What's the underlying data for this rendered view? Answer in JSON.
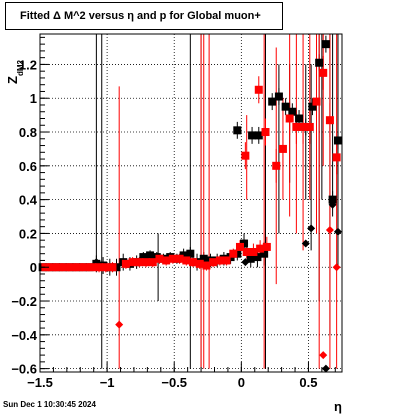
{
  "window": {
    "title": "Fitted Δ M^2 versus η and p for Global muon+",
    "timestamp": "Sun Dec  1 10:30:45 2024"
  },
  "chart_data": {
    "type": "scatter",
    "title": "Fitted Δ M^2 versus η and p for Global muon+",
    "xlabel": "η",
    "ylabel": "Z_{dM2}",
    "xlim": [
      -1.5,
      0.75
    ],
    "ylim": [
      -0.62,
      1.38
    ],
    "grid": true,
    "xticks": [
      -1.5,
      -1,
      -0.5,
      0,
      0.5
    ],
    "xtick_labels": [
      "−1.5",
      "−1",
      "−0.5",
      "0",
      "0.5"
    ],
    "yticks": [
      -0.6,
      -0.4,
      -0.2,
      0,
      0.2,
      0.4,
      0.6,
      0.8,
      1,
      1.2
    ],
    "ytick_labels": [
      "−0.6",
      "−0.4",
      "−0.2",
      "0",
      "0.2",
      "0.4",
      "0.6",
      "0.8",
      "1",
      "1.2"
    ],
    "series": [
      {
        "color": "#000000",
        "marker": "square",
        "points": [
          [
            -1.48,
            0.0,
            0.02
          ],
          [
            -1.43,
            0.0,
            0.02
          ],
          [
            -1.38,
            0.0,
            0.02
          ],
          [
            -1.33,
            0.0,
            0.02
          ],
          [
            -1.28,
            0.0,
            0.02
          ],
          [
            -1.23,
            0.0,
            0.02
          ],
          [
            -1.18,
            0.0,
            0.02
          ],
          [
            -1.13,
            0.0,
            0.02
          ],
          [
            -1.08,
            0.02,
            0.05
          ],
          [
            -1.03,
            0.01,
            0.05
          ],
          [
            -0.98,
            0.0,
            0.05
          ],
          [
            -0.93,
            0.0,
            0.05
          ],
          [
            -0.88,
            0.03,
            0.05
          ],
          [
            -0.83,
            0.02,
            0.04
          ],
          [
            -0.78,
            0.03,
            0.04
          ],
          [
            -0.73,
            0.06,
            0.03
          ],
          [
            -0.68,
            0.07,
            0.03
          ],
          [
            -0.63,
            0.06,
            0.03
          ],
          [
            -0.58,
            0.05,
            0.03
          ],
          [
            -0.53,
            0.06,
            0.03
          ],
          [
            -0.48,
            0.05,
            0.03
          ],
          [
            -0.43,
            0.07,
            0.04
          ],
          [
            -0.38,
            0.08,
            0.04
          ],
          [
            -0.33,
            0.03,
            0.05
          ],
          [
            -0.28,
            0.05,
            0.04
          ],
          [
            -0.23,
            0.04,
            0.04
          ],
          [
            -0.18,
            0.04,
            0.04
          ],
          [
            -0.13,
            0.05,
            0.04
          ],
          [
            -0.08,
            0.06,
            0.04
          ],
          [
            -0.03,
            0.08,
            0.04
          ],
          [
            0.02,
            0.14,
            0.06
          ],
          [
            0.07,
            0.05,
            0.05
          ],
          [
            0.12,
            0.06,
            0.06
          ],
          [
            0.17,
            0.08,
            0.07
          ],
          [
            -0.03,
            0.81,
            0.05
          ],
          [
            0.08,
            0.78,
            0.05
          ],
          [
            0.13,
            0.78,
            0.05
          ],
          [
            0.23,
            0.98,
            0.05
          ],
          [
            0.28,
            1.01,
            0.05
          ],
          [
            0.33,
            0.95,
            0.05
          ],
          [
            0.38,
            0.92,
            0.05
          ],
          [
            0.43,
            0.88,
            0.05
          ],
          [
            0.48,
            0.83,
            0.05
          ],
          [
            0.53,
            0.95,
            0.05
          ],
          [
            0.58,
            1.21,
            0.05
          ],
          [
            0.63,
            1.32,
            0.05
          ],
          [
            0.68,
            0.4,
            0.05
          ],
          [
            0.72,
            0.75,
            0.05
          ]
        ],
        "diamonds": [
          [
            -1.08,
            0.03
          ],
          [
            0.03,
            0.03
          ],
          [
            0.48,
            0.14
          ],
          [
            0.52,
            0.23
          ],
          [
            0.68,
            0.37
          ],
          [
            0.72,
            0.21
          ],
          [
            0.63,
            -0.6
          ],
          [
            0.12,
            0.06
          ]
        ],
        "bars": [
          [
            -1.08,
            0.0,
            1.38
          ],
          [
            -1.04,
            -0.6,
            1.38
          ],
          [
            -0.62,
            -0.2,
            0.2
          ],
          [
            -0.38,
            -0.6,
            1.38
          ],
          [
            -0.3,
            -0.6,
            1.38
          ],
          [
            0.18,
            -0.6,
            1.38
          ],
          [
            0.28,
            0.2,
            1.2
          ],
          [
            0.36,
            0.5,
            1.2
          ],
          [
            0.48,
            0.4,
            1.2
          ],
          [
            0.52,
            0.1,
            1.2
          ],
          [
            0.58,
            -0.2,
            1.38
          ],
          [
            0.6,
            0.4,
            1.38
          ],
          [
            0.66,
            -0.4,
            1.38
          ],
          [
            0.68,
            0.3,
            1.38
          ],
          [
            0.72,
            0.0,
            1.38
          ]
        ]
      },
      {
        "color": "#ff0000",
        "marker": "square",
        "points": [
          [
            -1.46,
            0.0,
            0.02
          ],
          [
            -1.41,
            0.0,
            0.02
          ],
          [
            -1.36,
            0.0,
            0.02
          ],
          [
            -1.31,
            0.0,
            0.02
          ],
          [
            -1.26,
            0.0,
            0.02
          ],
          [
            -1.21,
            0.0,
            0.02
          ],
          [
            -1.16,
            0.0,
            0.02
          ],
          [
            -1.11,
            0.0,
            0.02
          ],
          [
            -1.06,
            0.0,
            0.03
          ],
          [
            -1.01,
            0.0,
            0.03
          ],
          [
            -0.96,
            0.0,
            0.03
          ],
          [
            -0.86,
            0.02,
            0.03
          ],
          [
            -0.81,
            0.03,
            0.03
          ],
          [
            -0.76,
            0.03,
            0.03
          ],
          [
            -0.71,
            0.03,
            0.03
          ],
          [
            -0.66,
            0.03,
            0.03
          ],
          [
            -0.61,
            0.05,
            0.03
          ],
          [
            -0.56,
            0.04,
            0.03
          ],
          [
            -0.51,
            0.05,
            0.03
          ],
          [
            -0.46,
            0.05,
            0.03
          ],
          [
            -0.41,
            0.04,
            0.03
          ],
          [
            -0.36,
            0.03,
            0.03
          ],
          [
            -0.31,
            0.02,
            0.03
          ],
          [
            -0.26,
            0.01,
            0.03
          ],
          [
            -0.21,
            0.03,
            0.03
          ],
          [
            -0.16,
            0.04,
            0.03
          ],
          [
            -0.11,
            0.04,
            0.03
          ],
          [
            -0.06,
            0.08,
            0.03
          ],
          [
            -0.01,
            0.12,
            0.04
          ],
          [
            0.04,
            0.09,
            0.04
          ],
          [
            0.09,
            0.09,
            0.05
          ],
          [
            0.14,
            0.11,
            0.05
          ],
          [
            0.19,
            0.12,
            0.06
          ],
          [
            0.03,
            0.66,
            0.08
          ],
          [
            0.13,
            1.05,
            0.08
          ],
          [
            0.18,
            0.8,
            0.08
          ],
          [
            0.26,
            0.6,
            0.1
          ],
          [
            0.31,
            0.7,
            0.1
          ],
          [
            0.36,
            0.88,
            0.1
          ],
          [
            0.41,
            0.83,
            0.1
          ],
          [
            0.46,
            0.83,
            0.1
          ],
          [
            0.51,
            0.83,
            0.1
          ],
          [
            0.56,
            0.98,
            0.1
          ],
          [
            0.61,
            1.15,
            0.1
          ],
          [
            0.66,
            0.87,
            0.1
          ],
          [
            0.71,
            0.65,
            0.1
          ]
        ],
        "diamonds": [
          [
            -0.96,
            0.0
          ],
          [
            -0.91,
            -0.34
          ],
          [
            0.19,
            0.12
          ],
          [
            0.61,
            -0.52
          ],
          [
            0.66,
            0.22
          ],
          [
            0.71,
            0.0
          ]
        ],
        "bars": [
          [
            -0.91,
            -0.6,
            1.07
          ],
          [
            -0.28,
            -0.6,
            1.38
          ],
          [
            -0.24,
            -0.6,
            1.38
          ],
          [
            -0.3,
            -0.6,
            1.38
          ],
          [
            0.04,
            0.4,
            0.9
          ],
          [
            0.17,
            -0.6,
            1.38
          ],
          [
            0.26,
            -0.1,
            1.3
          ],
          [
            0.31,
            0.4,
            1.0
          ],
          [
            0.36,
            0.3,
            1.38
          ],
          [
            0.41,
            0.2,
            1.38
          ],
          [
            0.46,
            0.1,
            1.38
          ],
          [
            0.51,
            0.4,
            1.38
          ],
          [
            0.56,
            0.2,
            1.38
          ],
          [
            0.58,
            -0.6,
            1.38
          ],
          [
            0.61,
            0.6,
            1.38
          ],
          [
            0.66,
            -0.6,
            1.38
          ],
          [
            0.71,
            -0.6,
            1.38
          ]
        ]
      }
    ]
  }
}
